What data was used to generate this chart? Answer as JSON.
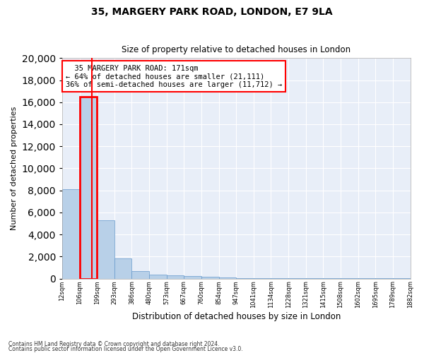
{
  "title1": "35, MARGERY PARK ROAD, LONDON, E7 9LA",
  "title2": "Size of property relative to detached houses in London",
  "xlabel": "Distribution of detached houses by size in London",
  "ylabel": "Number of detached properties",
  "bar_color": "#b8d0e8",
  "bar_edge_color": "#6699cc",
  "background_color": "#e8eef8",
  "bar_heights": [
    8100,
    16500,
    5300,
    1850,
    700,
    350,
    280,
    200,
    150,
    80,
    50,
    30,
    20,
    15,
    10,
    8,
    6,
    5,
    4,
    3
  ],
  "x_labels": [
    "12sqm",
    "106sqm",
    "199sqm",
    "293sqm",
    "386sqm",
    "480sqm",
    "573sqm",
    "667sqm",
    "760sqm",
    "854sqm",
    "947sqm",
    "1041sqm",
    "1134sqm",
    "1228sqm",
    "1321sqm",
    "1415sqm",
    "1508sqm",
    "1602sqm",
    "1695sqm",
    "1789sqm",
    "1882sqm"
  ],
  "ylim": [
    0,
    20000
  ],
  "yticks": [
    0,
    2000,
    4000,
    6000,
    8000,
    10000,
    12000,
    14000,
    16000,
    18000,
    20000
  ],
  "property_bar_index": 1,
  "annotation_title": "35 MARGERY PARK ROAD: 171sqm",
  "annotation_line1": "← 64% of detached houses are smaller (21,111)",
  "annotation_line2": "36% of semi-detached houses are larger (11,712) →",
  "footer1": "Contains HM Land Registry data © Crown copyright and database right 2024.",
  "footer2": "Contains public sector information licensed under the Open Government Licence v3.0."
}
